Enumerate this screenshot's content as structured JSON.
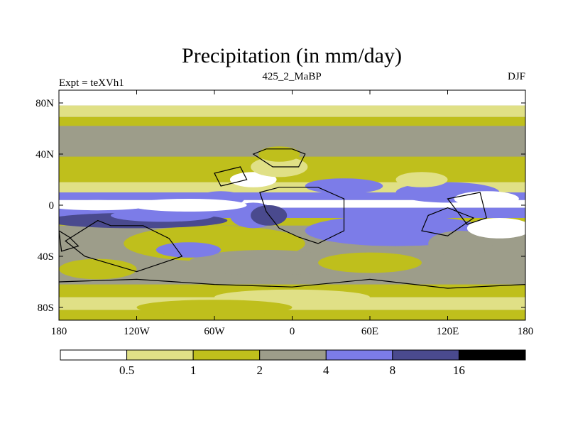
{
  "chart_data": {
    "type": "heatmap",
    "title": "Precipitation (in mm/day)",
    "left_label": "Expt = teXVh1",
    "center_label": "425_2_MaBP",
    "right_label": "DJF",
    "x_ticks": [
      {
        "value": -180,
        "label": "180"
      },
      {
        "value": -120,
        "label": "120W"
      },
      {
        "value": -60,
        "label": "60W"
      },
      {
        "value": 0,
        "label": "0"
      },
      {
        "value": 60,
        "label": "60E"
      },
      {
        "value": 120,
        "label": "120E"
      },
      {
        "value": 180,
        "label": "180"
      }
    ],
    "y_ticks": [
      {
        "value": 80,
        "label": "80N"
      },
      {
        "value": 40,
        "label": "40N"
      },
      {
        "value": 0,
        "label": "0"
      },
      {
        "value": -40,
        "label": "40S"
      },
      {
        "value": -80,
        "label": "80S"
      }
    ],
    "xlim": [
      -180,
      180
    ],
    "ylim": [
      -90,
      90
    ],
    "levels": [
      0.5,
      1,
      2,
      4,
      8,
      16
    ],
    "level_labels": [
      "0.5",
      "1",
      "2",
      "4",
      "8",
      "16"
    ],
    "colors": [
      "#ffffff",
      "#e0e086",
      "#bfbf1c",
      "#9d9d8a",
      "#7c7ce8",
      "#4a4a8e",
      "#000000"
    ],
    "land_outline_color": "#000000",
    "background_band_color": "#9d9d8a"
  }
}
